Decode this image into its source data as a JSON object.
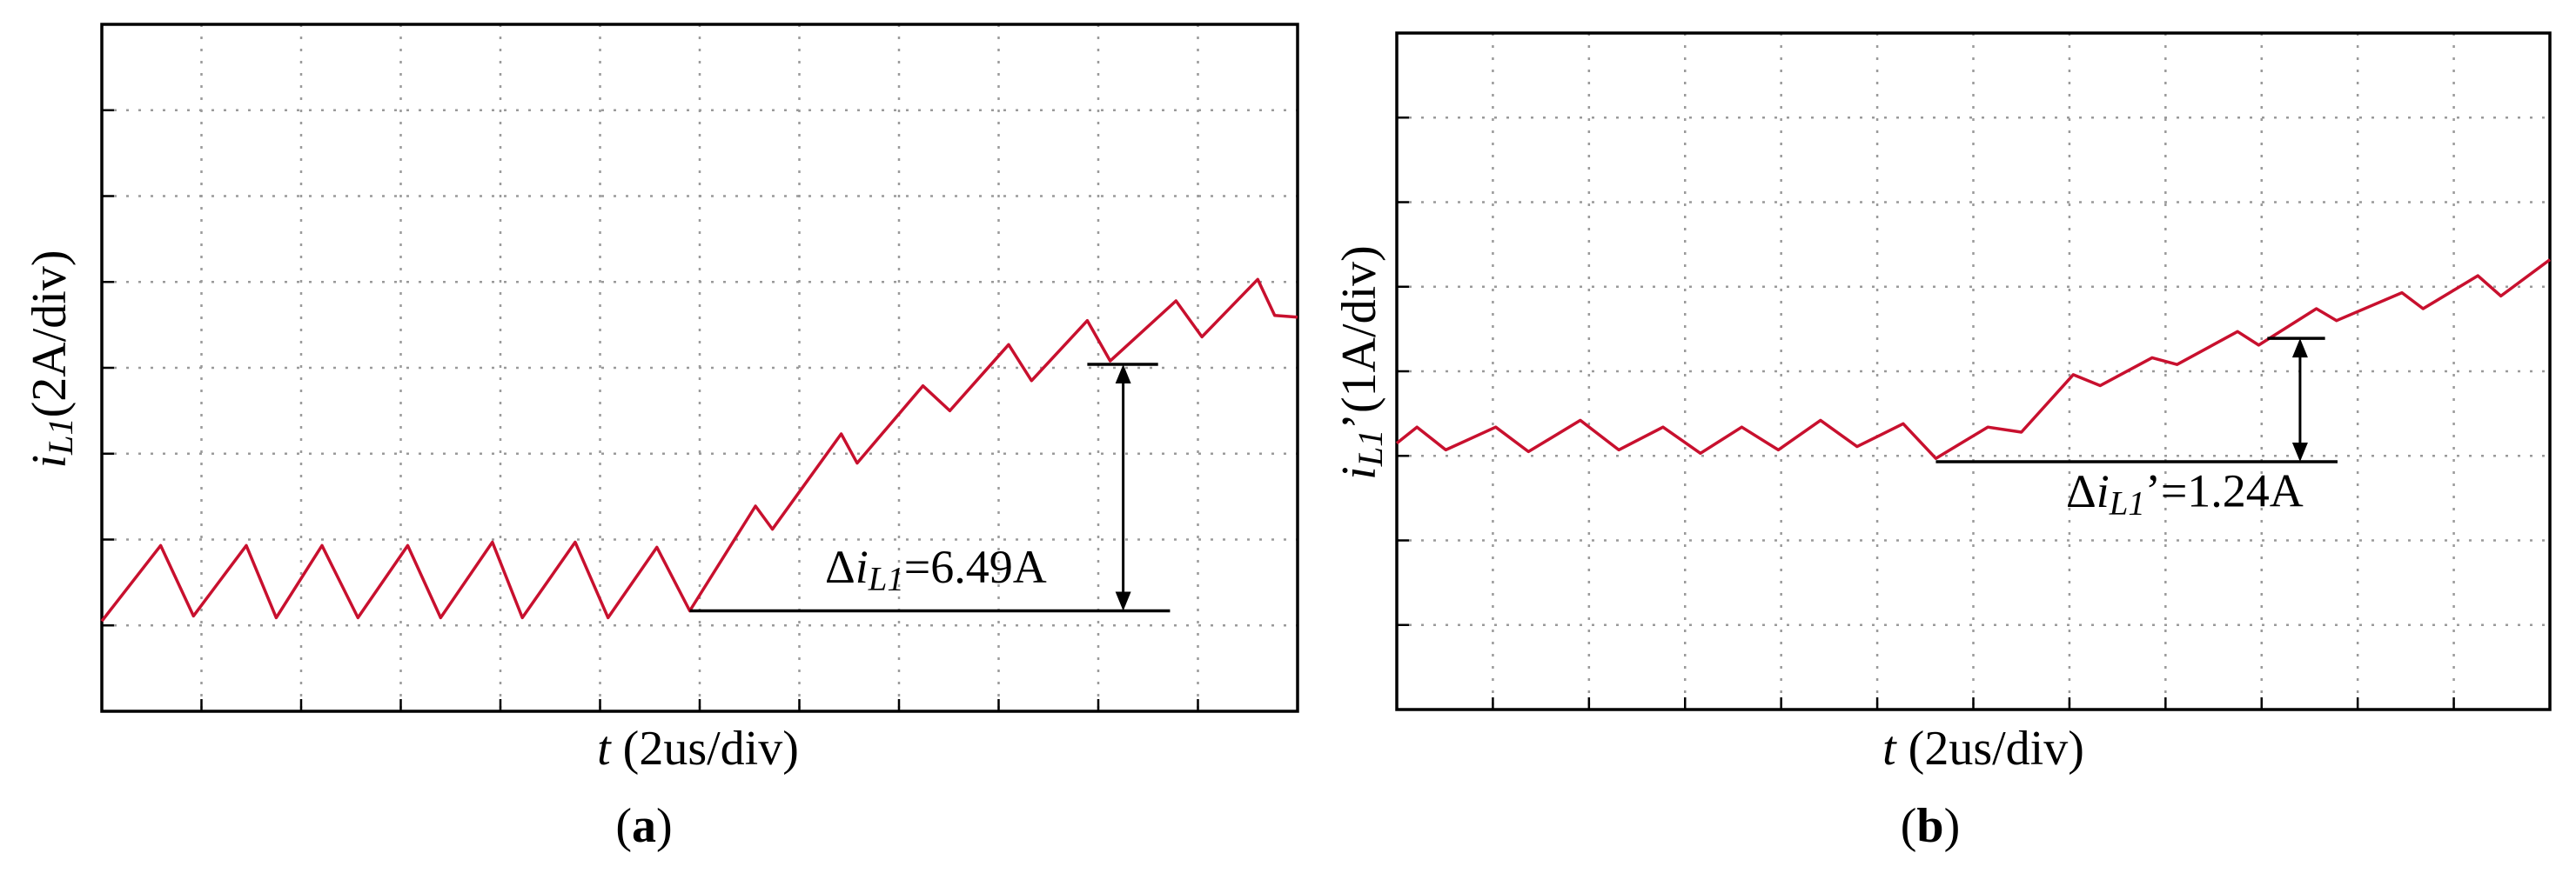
{
  "chart_data": [
    {
      "type": "line",
      "ylabel": [
        "i",
        "L1",
        "(2A/div)"
      ],
      "xlabel": [
        "t",
        " (2us/div)"
      ],
      "caption": [
        "(",
        "a",
        ")"
      ],
      "annotation": [
        "Δ",
        "i",
        "L1",
        "=6.49A"
      ],
      "xlim": [
        0,
        12
      ],
      "ylim": [
        0,
        8
      ],
      "grid": true,
      "color": "#c8102e",
      "x": [
        0,
        0.59,
        0.92,
        1.45,
        1.75,
        2.21,
        2.57,
        3.07,
        3.4,
        3.92,
        4.22,
        4.75,
        5.08,
        5.57,
        5.9,
        6.56,
        6.73,
        7.42,
        7.58,
        8.24,
        8.51,
        9.1,
        9.33,
        9.89,
        10.12,
        10.78,
        11.04,
        11.6,
        11.77,
        12
      ],
      "values": [
        1.05,
        1.93,
        1.11,
        1.93,
        1.09,
        1.93,
        1.09,
        1.93,
        1.09,
        1.97,
        1.09,
        1.97,
        1.09,
        1.91,
        1.17,
        2.39,
        2.12,
        3.23,
        2.89,
        3.79,
        3.5,
        4.27,
        3.85,
        4.55,
        4.08,
        4.78,
        4.36,
        5.03,
        4.61,
        4.59
      ]
    },
    {
      "type": "line",
      "ylabel": [
        "i",
        "L1",
        "’(1A/div)"
      ],
      "xlabel": [
        "t",
        " (2us/div)"
      ],
      "caption": [
        "(",
        "b",
        ")"
      ],
      "annotation": [
        "Δ",
        "i",
        "L1",
        "’=1.24A"
      ],
      "xlim": [
        0,
        12
      ],
      "ylim": [
        0,
        8
      ],
      "grid": true,
      "color": "#c8102e",
      "x": [
        0,
        0.21,
        0.51,
        1.03,
        1.37,
        1.91,
        2.31,
        2.77,
        3.16,
        3.59,
        3.97,
        4.41,
        4.79,
        5.27,
        5.61,
        6.15,
        6.5,
        7.04,
        7.32,
        7.86,
        8.12,
        8.75,
        8.97,
        9.57,
        9.78,
        10.46,
        10.68,
        11.25,
        11.49,
        12
      ],
      "values": [
        3.15,
        3.34,
        3.07,
        3.34,
        3.05,
        3.42,
        3.07,
        3.34,
        3.03,
        3.34,
        3.07,
        3.42,
        3.11,
        3.38,
        2.97,
        3.34,
        3.28,
        3.96,
        3.83,
        4.16,
        4.08,
        4.47,
        4.31,
        4.74,
        4.6,
        4.93,
        4.74,
        5.13,
        4.89,
        5.32
      ]
    }
  ]
}
